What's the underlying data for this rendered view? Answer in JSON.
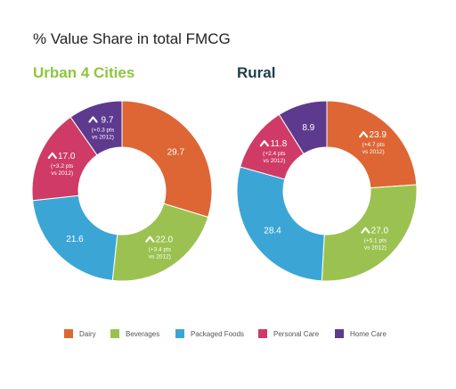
{
  "page_title": "% Value Share in total FMCG",
  "categories": [
    "Dairy",
    "Beverages",
    "Packaged Foods",
    "Personal Care",
    "Home Care"
  ],
  "colors": [
    "#dd6634",
    "#9bc250",
    "#3ba6d6",
    "#cf3b66",
    "#5e3a8f"
  ],
  "chart_data": [
    {
      "type": "pie",
      "title": "Urban 4 Cities",
      "title_color": "#8dc63f",
      "categories": [
        "Dairy",
        "Beverages",
        "Packaged Foods",
        "Personal Care",
        "Home Care"
      ],
      "values": [
        29.7,
        22.0,
        21.6,
        17.0,
        9.7
      ],
      "annotations": [
        "",
        "(+3.4 pts vs 2012)",
        "",
        "(+3.2 pts vs 2012)",
        "(+0.3 pts vs 2012)"
      ],
      "increase_marker": [
        false,
        true,
        false,
        true,
        true
      ]
    },
    {
      "type": "pie",
      "title": "Rural",
      "title_color": "#1c3f4a",
      "categories": [
        "Dairy",
        "Beverages",
        "Packaged Foods",
        "Personal Care",
        "Home Care"
      ],
      "values": [
        23.9,
        27.0,
        28.4,
        11.8,
        8.9
      ],
      "annotations": [
        "(+4.7 pts vs 2012)",
        "(+5.1 pts vs 2012)",
        "",
        "(+2.4 pts vs 2012)",
        ""
      ],
      "increase_marker": [
        true,
        true,
        false,
        true,
        false
      ]
    }
  ]
}
